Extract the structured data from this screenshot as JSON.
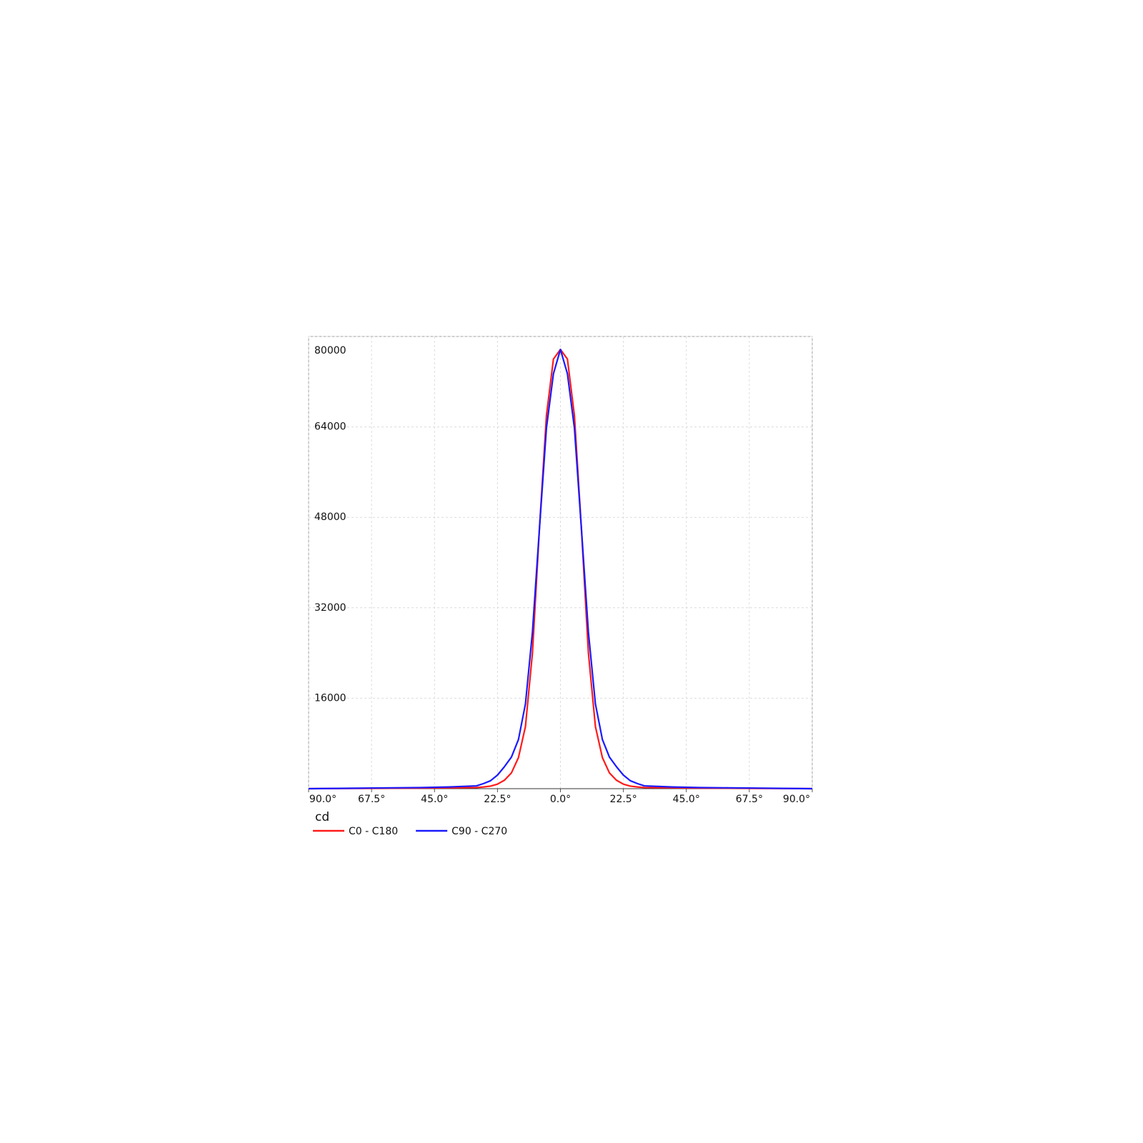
{
  "chart_data": {
    "type": "line",
    "x_label": "cd",
    "x": [
      -90,
      -80,
      -70,
      -60,
      -50,
      -40,
      -30,
      -27.5,
      -25,
      -22.5,
      -20,
      -17.5,
      -15,
      -12.5,
      -10,
      -7.5,
      -5,
      -2.5,
      0,
      2.5,
      5,
      7.5,
      10,
      12.5,
      15,
      17.5,
      20,
      22.5,
      25,
      27.5,
      30,
      40,
      50,
      60,
      70,
      80,
      90
    ],
    "series": [
      {
        "name": "C0 - C180",
        "color": "#ff1a1a",
        "values": [
          0,
          30,
          50,
          80,
          100,
          150,
          200,
          300,
          450,
          800,
          1500,
          2800,
          5500,
          11000,
          24000,
          46000,
          66000,
          76000,
          77700,
          76000,
          66000,
          46000,
          24000,
          11000,
          5500,
          2800,
          1500,
          800,
          450,
          300,
          200,
          150,
          100,
          80,
          50,
          30,
          0
        ]
      },
      {
        "name": "C90 - C270",
        "color": "#1a1aff",
        "values": [
          0,
          50,
          100,
          150,
          200,
          300,
          500,
          900,
          1400,
          2400,
          3900,
          5600,
          8700,
          15000,
          27700,
          46000,
          63800,
          73400,
          77700,
          73400,
          63800,
          46000,
          27700,
          15000,
          8700,
          5600,
          3900,
          2400,
          1400,
          900,
          500,
          300,
          200,
          150,
          100,
          50,
          0
        ]
      }
    ],
    "xlim": [
      -90,
      90
    ],
    "xticks": [
      {
        "value": -90,
        "label": "90.0°"
      },
      {
        "value": -67.5,
        "label": "67.5°"
      },
      {
        "value": -45,
        "label": "45.0°"
      },
      {
        "value": -22.5,
        "label": "22.5°"
      },
      {
        "value": 0,
        "label": "0.0°"
      },
      {
        "value": 22.5,
        "label": "22.5°"
      },
      {
        "value": 45,
        "label": "45.0°"
      },
      {
        "value": 67.5,
        "label": "67.5°"
      },
      {
        "value": 90,
        "label": "90.0°"
      }
    ],
    "ylim": [
      0,
      80000
    ],
    "yticks": [
      16000,
      32000,
      48000,
      64000,
      80000
    ],
    "grid": true
  }
}
